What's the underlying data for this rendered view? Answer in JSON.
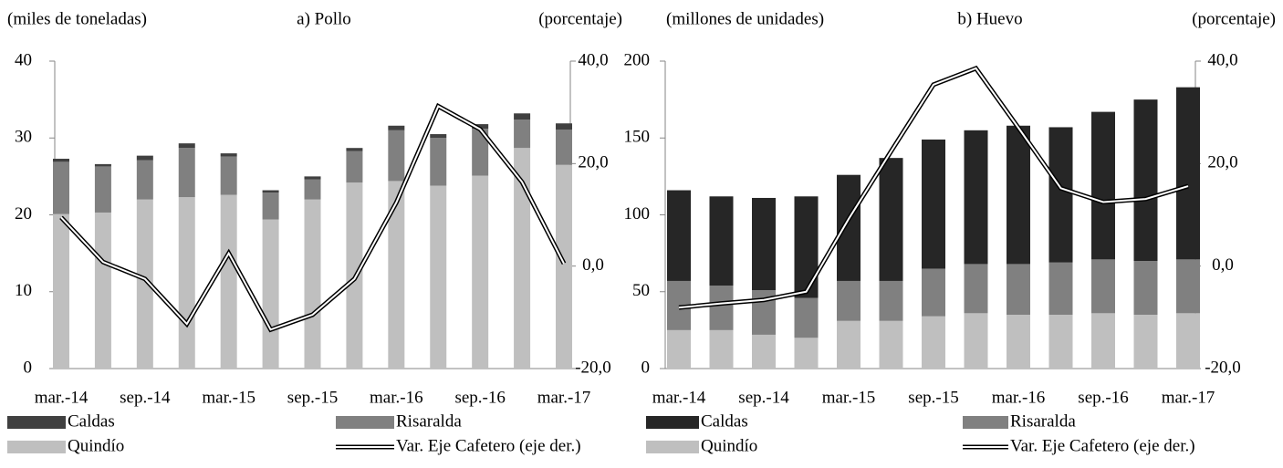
{
  "chart_data": [
    {
      "type": "bar",
      "title": "a) Pollo",
      "y_label": "(miles de toneladas)",
      "y2_label": "(porcentaje)",
      "stacked": true,
      "categories": [
        "mar.-14",
        null,
        "sep.-14",
        null,
        "mar.-15",
        null,
        "sep.-15",
        null,
        "mar.-16",
        null,
        "sep.-16",
        null,
        "mar.-17"
      ],
      "series": [
        {
          "name": "Caldas",
          "color": "#404040",
          "values": [
            0.4,
            0.3,
            0.6,
            0.6,
            0.4,
            0.3,
            0.4,
            0.4,
            0.6,
            0.5,
            0.6,
            0.8,
            0.8
          ]
        },
        {
          "name": "Risaralda",
          "color": "#808080",
          "values": [
            6.8,
            6.0,
            5.1,
            6.4,
            5.0,
            3.5,
            2.6,
            4.1,
            6.6,
            6.2,
            6.1,
            3.7,
            4.6
          ]
        },
        {
          "name": "Quindío",
          "color": "#bfbfbf",
          "values": [
            20.1,
            20.3,
            22.0,
            22.3,
            22.6,
            19.4,
            22.0,
            24.2,
            24.4,
            23.8,
            25.1,
            28.7,
            26.5
          ]
        },
        {
          "name": "Var. Eje Cafetero (eje der.)",
          "type": "line",
          "axis": "y2",
          "color": "#000000",
          "values": [
            9.5,
            0.8,
            -2.5,
            -11.3,
            2.5,
            -12.4,
            -9.5,
            -2.5,
            12.4,
            31.2,
            26.7,
            16.4,
            0.5
          ]
        }
      ],
      "ylim": [
        0,
        40
      ],
      "yticks": [
        0,
        10,
        20,
        30,
        40
      ],
      "y2lim": [
        -20,
        40
      ],
      "y2ticks": [
        {
          "value": -20,
          "label": "-20,0"
        },
        {
          "value": 0,
          "label": "0,0"
        },
        {
          "value": 20,
          "label": "20,0"
        },
        {
          "value": 40,
          "label": "40,0"
        }
      ]
    },
    {
      "type": "bar",
      "title": "b) Huevo",
      "y_label": "(millones de unidades)",
      "y2_label": "(porcentaje)",
      "stacked": true,
      "categories": [
        "mar.-14",
        null,
        "sep.-14",
        null,
        "mar.-15",
        null,
        "sep.-15",
        null,
        "mar.-16",
        null,
        "sep.-16",
        null,
        "mar.-17"
      ],
      "series": [
        {
          "name": "Caldas",
          "color": "#262626",
          "values": [
            59,
            58,
            60,
            66,
            69,
            80,
            84,
            87,
            90,
            88,
            96,
            105,
            112
          ]
        },
        {
          "name": "Risaralda",
          "color": "#808080",
          "values": [
            32,
            29,
            29,
            26,
            26,
            26,
            31,
            32,
            33,
            34,
            35,
            35,
            35
          ]
        },
        {
          "name": "Quindío",
          "color": "#bfbfbf",
          "values": [
            25,
            25,
            22,
            20,
            31,
            31,
            34,
            36,
            35,
            35,
            36,
            35,
            36
          ]
        },
        {
          "name": "Var. Eje Cafetero (eje der.)",
          "type": "line",
          "axis": "y2",
          "color": "#000000",
          "values": [
            -8.1,
            -7.3,
            -6.6,
            -5.0,
            9.2,
            22.4,
            35.4,
            38.6,
            27.0,
            15.2,
            12.5,
            13.1,
            15.6
          ]
        }
      ],
      "ylim": [
        0,
        200
      ],
      "yticks": [
        0,
        50,
        100,
        150,
        200
      ],
      "y2lim": [
        -20,
        40
      ],
      "y2ticks": [
        {
          "value": -20,
          "label": "-20,0"
        },
        {
          "value": 0,
          "label": "0,0"
        },
        {
          "value": 20,
          "label": "20,0"
        },
        {
          "value": 40,
          "label": "40,0"
        }
      ]
    }
  ]
}
